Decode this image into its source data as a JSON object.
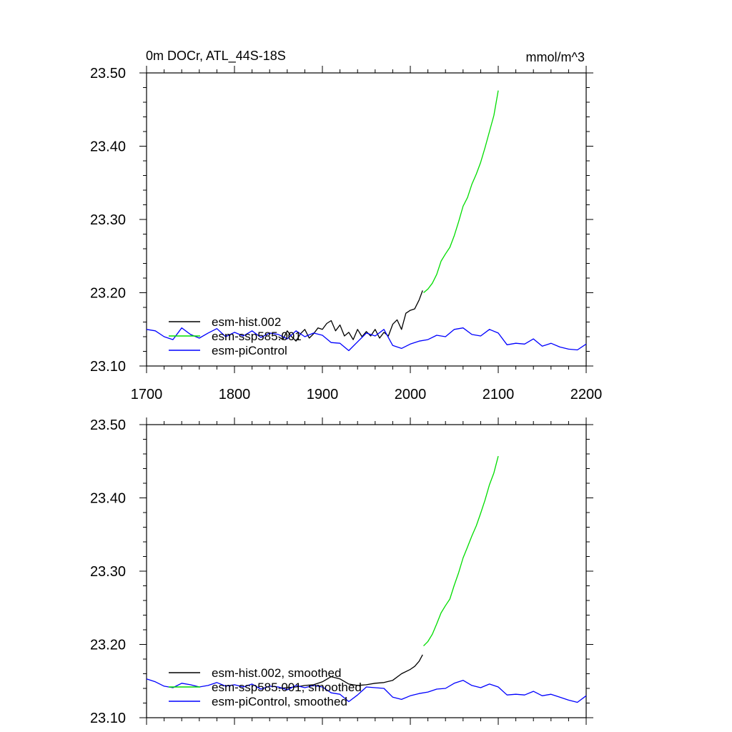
{
  "header": {
    "title": "0m DOCr, ATL_44S-18S",
    "units": "mmol/m^3"
  },
  "chart_data": [
    {
      "type": "line",
      "xlim": [
        1700,
        2200
      ],
      "ylim": [
        23.1,
        23.5
      ],
      "x_ticks": [
        1700,
        1800,
        1900,
        2000,
        2100,
        2200
      ],
      "x_tick_labels": [
        "1700",
        "1800",
        "1900",
        "2000",
        "2100",
        "2200"
      ],
      "y_ticks": [
        23.1,
        23.2,
        23.3,
        23.4,
        23.5
      ],
      "y_tick_labels": [
        "23.10",
        "23.20",
        "23.30",
        "23.40",
        "23.50"
      ],
      "grid": false,
      "legend_position": "bottom-left",
      "colors": {
        "hist": "#000000",
        "ssp": "#00dd00",
        "pi": "#0000ff"
      },
      "series": [
        {
          "name": "esm-hist.002",
          "color": "#000000",
          "x": [
            1850,
            1855,
            1860,
            1865,
            1870,
            1875,
            1880,
            1885,
            1890,
            1895,
            1900,
            1905,
            1910,
            1915,
            1920,
            1925,
            1930,
            1935,
            1940,
            1945,
            1950,
            1955,
            1960,
            1965,
            1970,
            1975,
            1980,
            1985,
            1990,
            1995,
            2000,
            2005,
            2010,
            2014
          ],
          "y": [
            23.14,
            23.136,
            23.148,
            23.14,
            23.134,
            23.144,
            23.15,
            23.138,
            23.144,
            23.152,
            23.15,
            23.158,
            23.162,
            23.148,
            23.156,
            23.141,
            23.146,
            23.136,
            23.15,
            23.14,
            23.147,
            23.141,
            23.15,
            23.138,
            23.146,
            23.141,
            23.157,
            23.163,
            23.15,
            23.172,
            23.176,
            23.178,
            23.19,
            23.203
          ]
        },
        {
          "name": "esm-ssp585.001",
          "color": "#00dd00",
          "x": [
            2015,
            2020,
            2025,
            2030,
            2035,
            2040,
            2045,
            2050,
            2055,
            2060,
            2065,
            2070,
            2075,
            2080,
            2085,
            2090,
            2095,
            2100
          ],
          "y": [
            23.2,
            23.205,
            23.213,
            23.225,
            23.243,
            23.253,
            23.262,
            23.278,
            23.297,
            23.318,
            23.33,
            23.348,
            23.362,
            23.378,
            23.398,
            23.42,
            23.442,
            23.476
          ]
        },
        {
          "name": "esm-piControl",
          "color": "#0000ff",
          "x": [
            1700,
            1710,
            1720,
            1730,
            1740,
            1750,
            1760,
            1770,
            1780,
            1790,
            1800,
            1810,
            1820,
            1830,
            1840,
            1850,
            1860,
            1870,
            1880,
            1890,
            1900,
            1910,
            1920,
            1930,
            1940,
            1950,
            1960,
            1970,
            1980,
            1990,
            2000,
            2010,
            2020,
            2030,
            2040,
            2050,
            2060,
            2070,
            2080,
            2090,
            2100,
            2110,
            2120,
            2130,
            2140,
            2150,
            2160,
            2170,
            2180,
            2190,
            2200
          ],
          "y": [
            23.15,
            23.148,
            23.14,
            23.136,
            23.152,
            23.143,
            23.138,
            23.145,
            23.151,
            23.14,
            23.146,
            23.141,
            23.148,
            23.139,
            23.145,
            23.143,
            23.137,
            23.148,
            23.14,
            23.145,
            23.142,
            23.132,
            23.131,
            23.121,
            23.133,
            23.145,
            23.141,
            23.15,
            23.128,
            23.124,
            23.13,
            23.134,
            23.136,
            23.142,
            23.14,
            23.15,
            23.152,
            23.143,
            23.141,
            23.15,
            23.145,
            23.129,
            23.131,
            23.13,
            23.137,
            23.127,
            23.131,
            23.126,
            23.123,
            23.122,
            23.13
          ]
        }
      ]
    },
    {
      "type": "line",
      "xlim": [
        1700,
        2200
      ],
      "ylim": [
        23.1,
        23.5
      ],
      "x_ticks": [
        1700,
        1800,
        1900,
        2000,
        2100,
        2200
      ],
      "y_ticks": [
        23.1,
        23.2,
        23.3,
        23.4,
        23.5
      ],
      "y_tick_labels": [
        "23.10",
        "23.20",
        "23.30",
        "23.40",
        "23.50"
      ],
      "grid": false,
      "legend_position": "bottom-left",
      "series": [
        {
          "name": "esm-hist.002, smoothed",
          "color": "#000000",
          "x": [
            1850,
            1860,
            1870,
            1880,
            1890,
            1900,
            1910,
            1920,
            1930,
            1940,
            1950,
            1960,
            1970,
            1980,
            1990,
            2000,
            2005,
            2010,
            2014
          ],
          "y": [
            23.14,
            23.141,
            23.142,
            23.144,
            23.145,
            23.149,
            23.156,
            23.153,
            23.146,
            23.144,
            23.145,
            23.147,
            23.148,
            23.151,
            23.16,
            23.166,
            23.17,
            23.177,
            23.186
          ]
        },
        {
          "name": "esm-ssp585.001, smoothed",
          "color": "#00dd00",
          "x": [
            2015,
            2020,
            2025,
            2030,
            2035,
            2040,
            2045,
            2050,
            2055,
            2060,
            2065,
            2070,
            2075,
            2080,
            2085,
            2090,
            2095,
            2100
          ],
          "y": [
            23.198,
            23.204,
            23.214,
            23.228,
            23.243,
            23.253,
            23.262,
            23.281,
            23.298,
            23.318,
            23.333,
            23.348,
            23.362,
            23.379,
            23.397,
            23.418,
            23.434,
            23.457
          ]
        },
        {
          "name": "esm-piControl, smoothed",
          "color": "#0000ff",
          "x": [
            1700,
            1710,
            1720,
            1730,
            1740,
            1750,
            1760,
            1770,
            1780,
            1790,
            1800,
            1810,
            1820,
            1830,
            1840,
            1850,
            1860,
            1870,
            1880,
            1890,
            1900,
            1910,
            1920,
            1930,
            1940,
            1950,
            1960,
            1970,
            1980,
            1990,
            2000,
            2010,
            2020,
            2030,
            2040,
            2050,
            2060,
            2070,
            2080,
            2090,
            2100,
            2110,
            2120,
            2130,
            2140,
            2150,
            2160,
            2170,
            2180,
            2190,
            2200
          ],
          "y": [
            23.153,
            23.149,
            23.143,
            23.141,
            23.147,
            23.145,
            23.142,
            23.144,
            23.148,
            23.143,
            23.145,
            23.142,
            23.146,
            23.139,
            23.143,
            23.142,
            23.138,
            23.144,
            23.141,
            23.144,
            23.142,
            23.134,
            23.132,
            23.122,
            23.131,
            23.142,
            23.141,
            23.14,
            23.128,
            23.125,
            23.13,
            23.133,
            23.135,
            23.139,
            23.14,
            23.147,
            23.151,
            23.144,
            23.141,
            23.146,
            23.142,
            23.131,
            23.132,
            23.131,
            23.136,
            23.13,
            23.132,
            23.128,
            23.124,
            23.121,
            23.13
          ]
        }
      ]
    }
  ]
}
